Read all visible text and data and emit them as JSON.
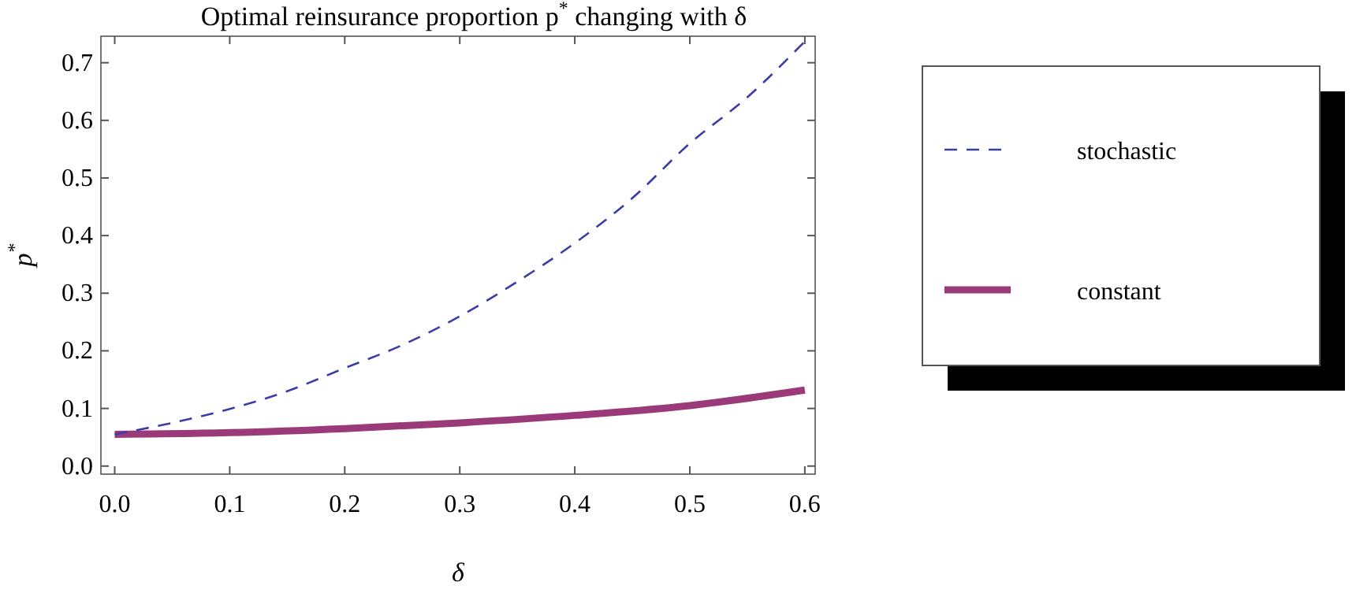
{
  "chart_data": {
    "type": "line",
    "title": "Optimal reinsurance proportion p$^{*}$ changing with δ",
    "xlabel": "δ",
    "ylabel": "p$^{*}$",
    "xlim": [
      -0.012,
      0.609
    ],
    "ylim": [
      -0.014,
      0.746
    ],
    "xticks": [
      {
        "value": 0,
        "label": "0.0"
      },
      0.1,
      0.2,
      0.3,
      0.4,
      0.5,
      0.6
    ],
    "yticks": [
      {
        "value": 0,
        "label": "0.0"
      },
      0.1,
      0.2,
      0.3,
      0.4,
      0.5,
      0.6,
      0.7
    ],
    "legend": "right",
    "grid": false,
    "series": [
      {
        "name": "stochastic",
        "color": "#3c3ca8",
        "line_style": "dashed",
        "x": [
          0,
          0.05,
          0.1,
          0.15,
          0.2,
          0.25,
          0.3,
          0.35,
          0.4,
          0.45,
          0.5,
          0.55,
          0.6
        ],
        "values": [
          0.055,
          0.075,
          0.099,
          0.13,
          0.17,
          0.21,
          0.26,
          0.32,
          0.387,
          0.465,
          0.56,
          0.64,
          0.737
        ]
      },
      {
        "name": "constant",
        "color": "#9b3a78",
        "line_style": "solid",
        "x": [
          0,
          0.1,
          0.2,
          0.3,
          0.4,
          0.5,
          0.6
        ],
        "values": [
          0.055,
          0.058,
          0.065,
          0.075,
          0.088,
          0.105,
          0.132
        ]
      }
    ]
  }
}
